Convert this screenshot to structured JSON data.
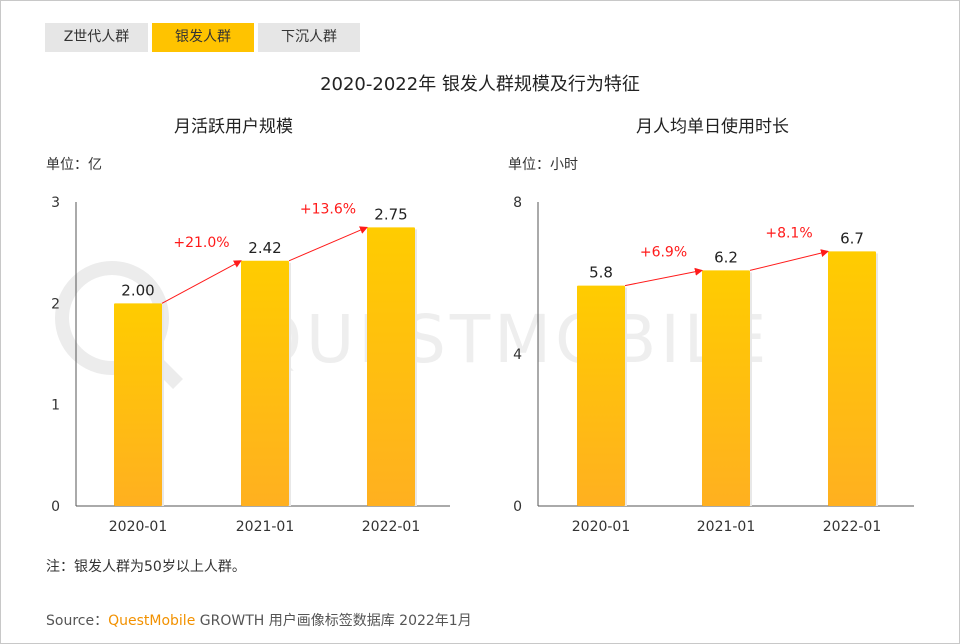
{
  "tabs": [
    {
      "label": "Z世代人群",
      "active": false
    },
    {
      "label": "银发人群",
      "active": true
    },
    {
      "label": "下沉人群",
      "active": false
    }
  ],
  "main_title": "2020-2022年 银发人群规模及行为特征",
  "watermark": "QUESTMOBILE",
  "colors": {
    "bar_top": "#ffcc00",
    "bar_bottom": "#ffb020",
    "arrow": "#ff1a1a",
    "tab_active": "#ffc300"
  },
  "chart_data": [
    {
      "type": "bar",
      "title": "月活跃用户规模",
      "unit_label": "单位：亿",
      "categories": [
        "2020-01",
        "2021-01",
        "2022-01"
      ],
      "values": [
        2.0,
        2.42,
        2.75
      ],
      "value_labels": [
        "2.00",
        "2.42",
        "2.75"
      ],
      "growth_labels": [
        "+21.0%",
        "+13.6%"
      ],
      "yticks": [
        "0",
        "1",
        "2",
        "3"
      ],
      "ylim": [
        0,
        3
      ]
    },
    {
      "type": "bar",
      "title": "月人均单日使用时长",
      "unit_label": "单位：小时",
      "categories": [
        "2020-01",
        "2021-01",
        "2022-01"
      ],
      "values": [
        5.8,
        6.2,
        6.7
      ],
      "value_labels": [
        "5.8",
        "6.2",
        "6.7"
      ],
      "growth_labels": [
        "+6.9%",
        "+8.1%"
      ],
      "yticks": [
        "0",
        "4",
        "8"
      ],
      "ylim": [
        0,
        8
      ]
    }
  ],
  "note": "注：银发人群为50岁以上人群。",
  "source": {
    "prefix": "Source：",
    "brand": "QuestMobile",
    "suffix": " GROWTH 用户画像标签数据库 2022年1月"
  }
}
